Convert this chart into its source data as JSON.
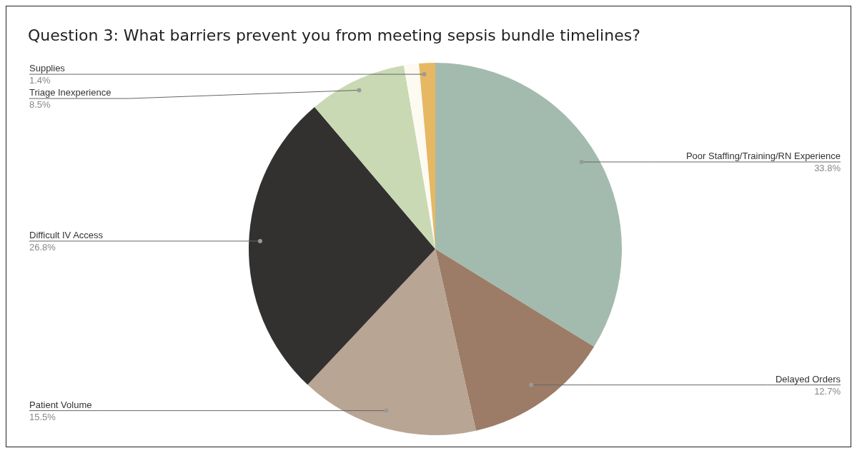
{
  "chart_data": {
    "type": "pie",
    "title": "Question 3: What barriers prevent you from meeting sepsis bundle timelines?",
    "categories": [
      "Poor Staffing/Training/RN Experience",
      "Delayed Orders",
      "Patient Volume",
      "Difficult IV Access",
      "Triage Inexperience",
      null,
      "Supplies"
    ],
    "values": [
      33.8,
      12.7,
      15.5,
      26.8,
      8.5,
      1.3,
      1.4
    ],
    "value_labels": [
      "33.8%",
      "12.7%",
      "15.5%",
      "26.8%",
      "8.5%",
      null,
      "1.4%"
    ],
    "colors": [
      "#a3bbae",
      "#9c7c67",
      "#b8a593",
      "#333130",
      "#c9d9b4",
      "#fdfaf2",
      "#e6b864"
    ]
  }
}
